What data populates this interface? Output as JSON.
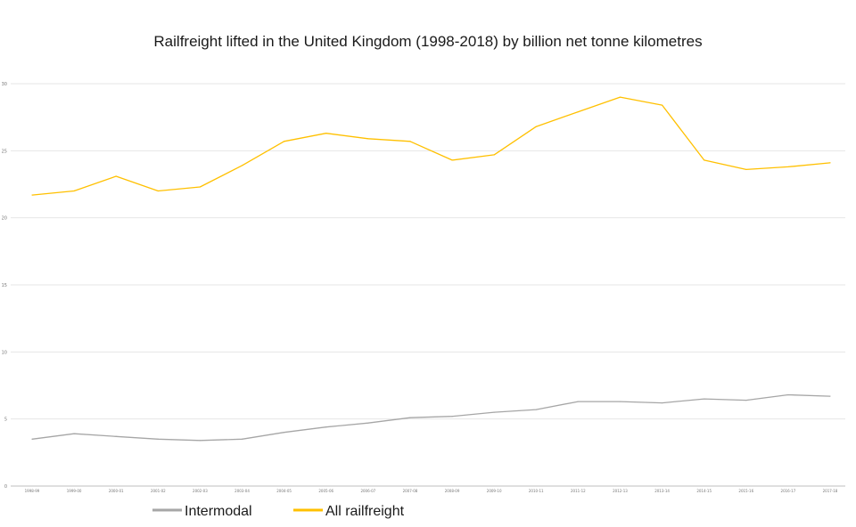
{
  "chart_data": {
    "type": "line",
    "title": "Railfreight lifted in the United Kingdom (1998-2018) by billion net tonne kilometres",
    "xlabel": "",
    "ylabel": "",
    "categories": [
      "1998-99",
      "1999-00",
      "2000-01",
      "2001-02",
      "2002-03",
      "2003-04",
      "2004-05",
      "2005-06",
      "2006-07",
      "2007-08",
      "2008-09",
      "2009-10",
      "2010-11",
      "2011-12",
      "2012-13",
      "2013-14",
      "2014-15",
      "2015-16",
      "2016-17",
      "2017-18"
    ],
    "yticks": [
      "0",
      "5",
      "10",
      "15",
      "20",
      "25",
      "30"
    ],
    "ylim": [
      0,
      30
    ],
    "grid": true,
    "legend_position": "bottom",
    "series": [
      {
        "name": "Intermodal",
        "color": "#a6a6a6",
        "values": [
          3.5,
          3.9,
          3.7,
          3.5,
          3.4,
          3.5,
          4.0,
          4.4,
          4.7,
          5.1,
          5.2,
          5.5,
          5.7,
          6.3,
          6.3,
          6.2,
          6.5,
          6.4,
          6.8,
          6.7
        ]
      },
      {
        "name": "All railfreight",
        "color": "#ffc000",
        "values": [
          21.7,
          22.0,
          23.1,
          22.0,
          22.3,
          23.9,
          25.7,
          26.3,
          25.9,
          25.7,
          24.3,
          24.7,
          26.8,
          27.9,
          29.0,
          28.4,
          24.3,
          23.6,
          23.8,
          24.1
        ]
      }
    ]
  }
}
